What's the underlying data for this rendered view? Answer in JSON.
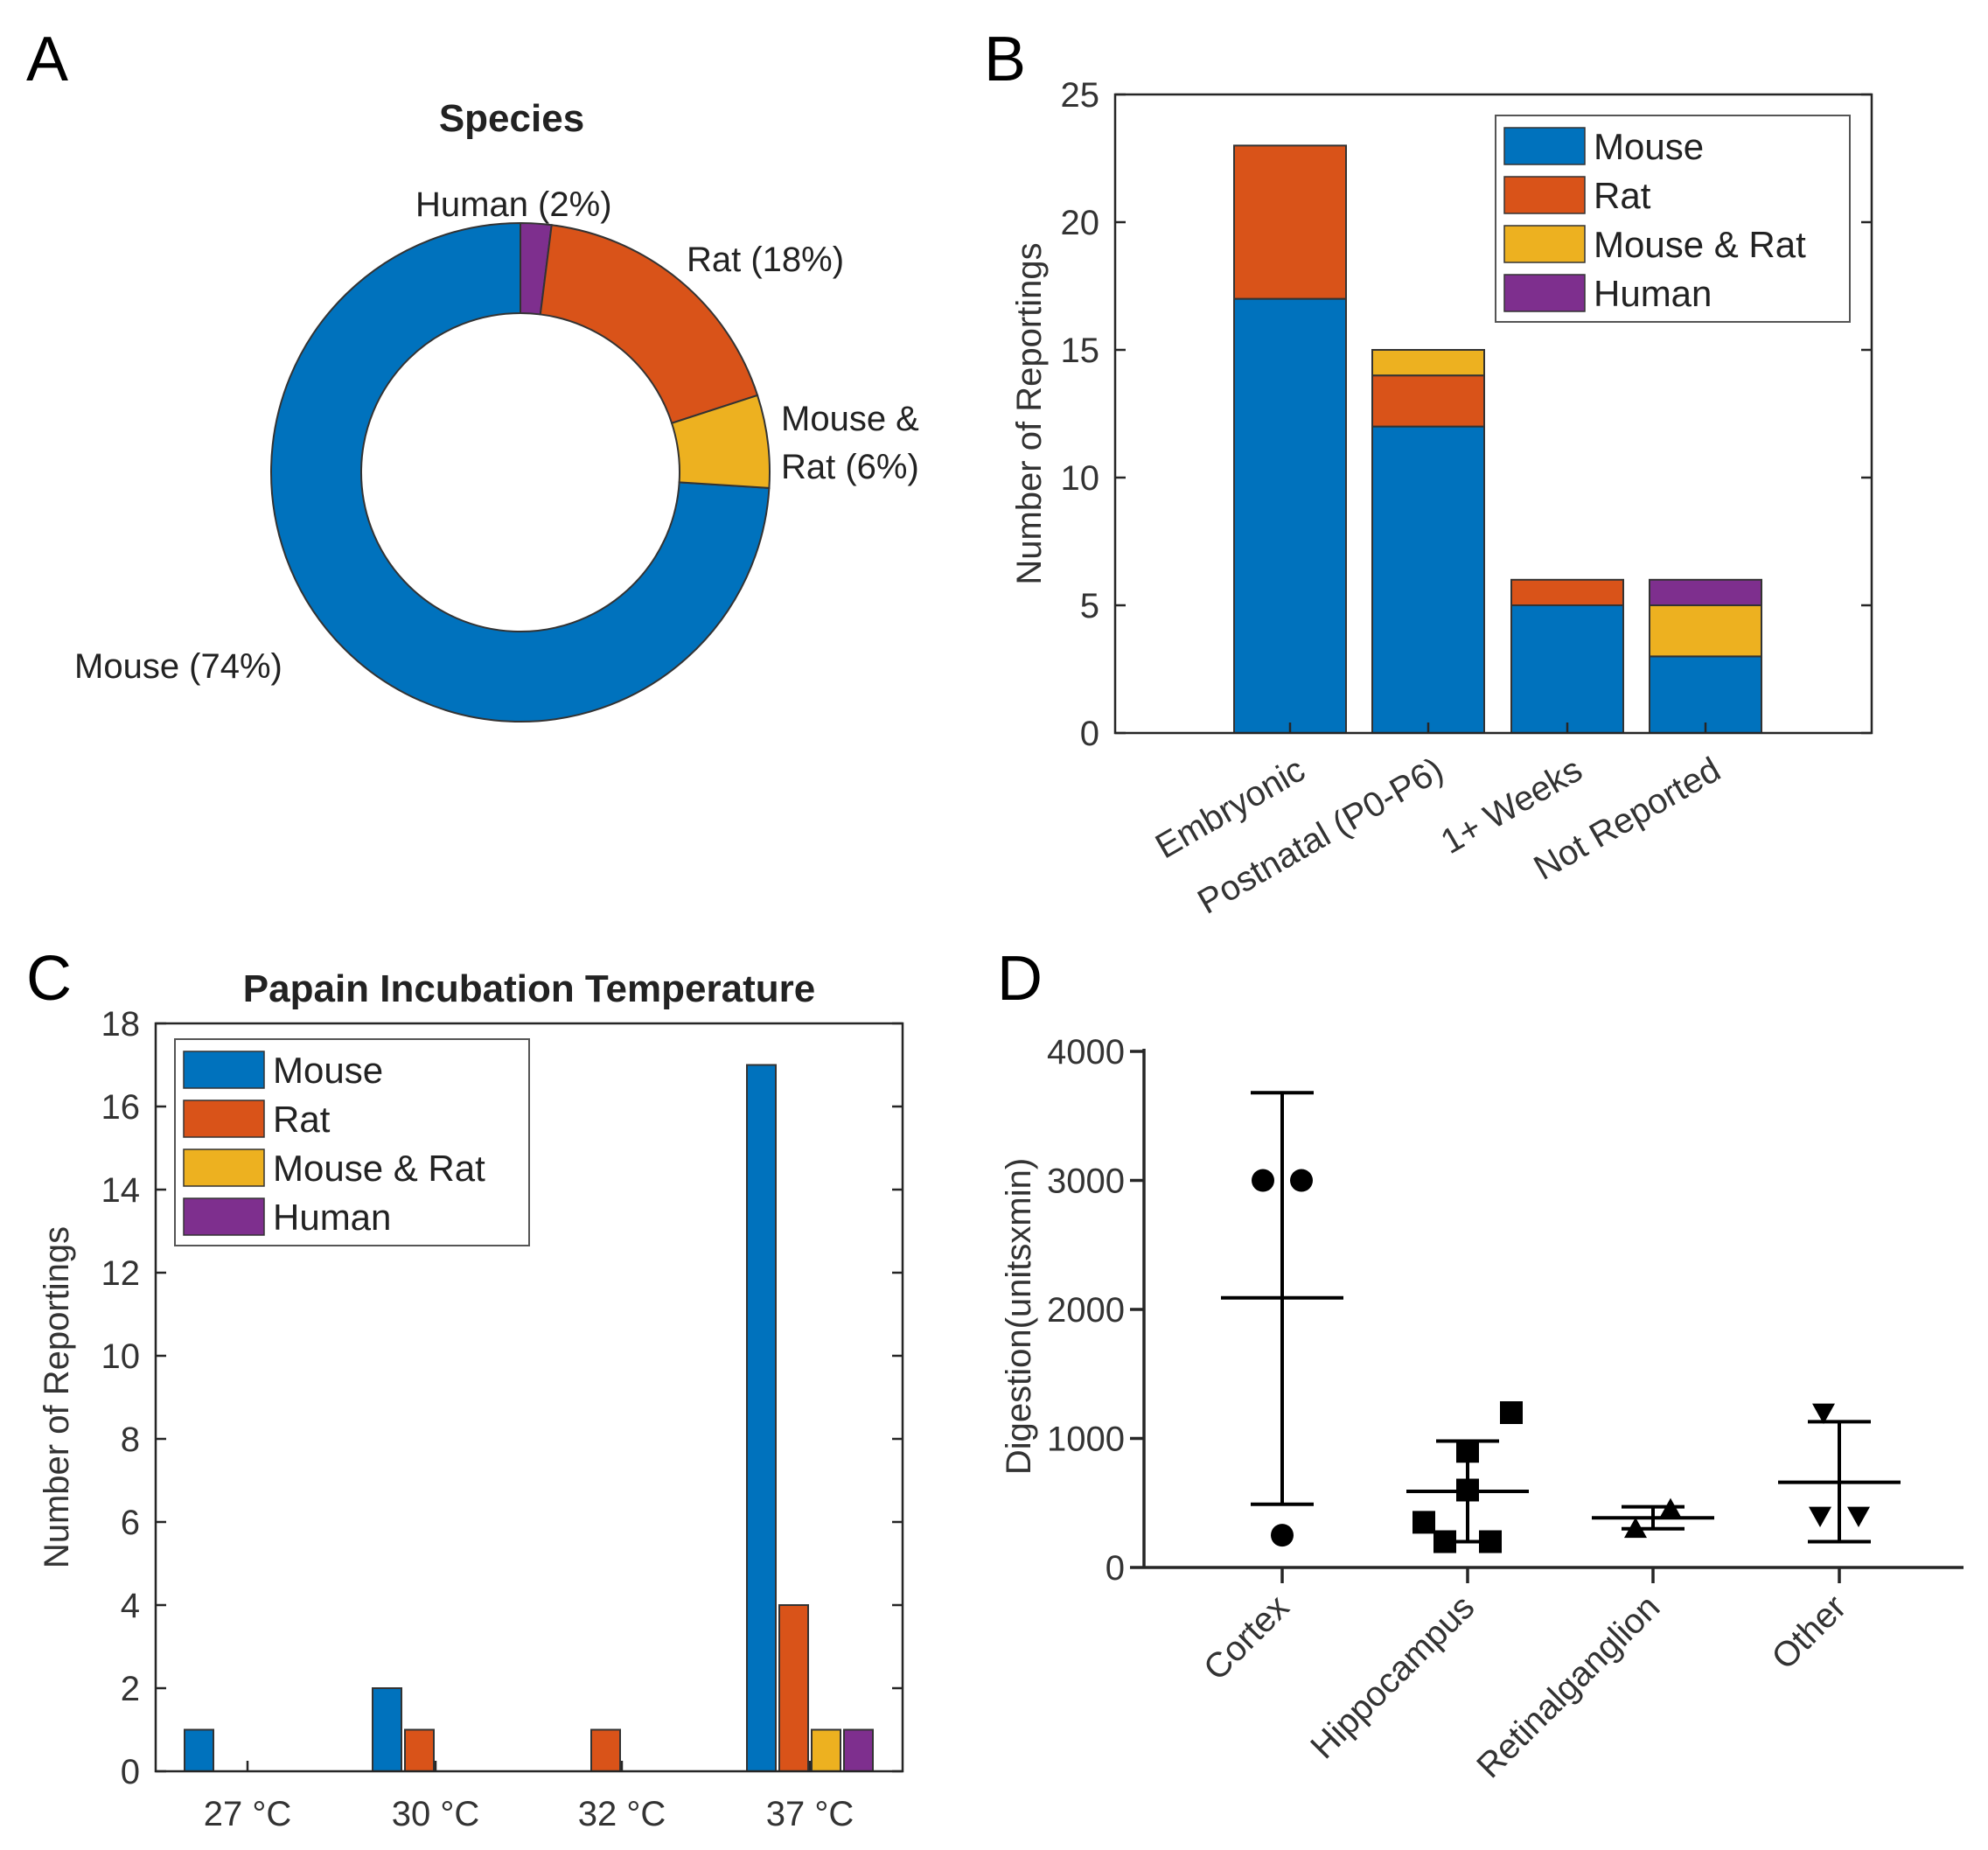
{
  "colors": {
    "Mouse": "#0072BD",
    "Rat": "#D95319",
    "Mouse & Rat": "#EDB120",
    "Human": "#7E2F8E",
    "axis": "#262626"
  },
  "chart_data": [
    {
      "panel": "A",
      "type": "pie",
      "title": "Species",
      "slices": [
        {
          "name": "Mouse",
          "value": 74,
          "label_lines": [
            "Mouse (74%)"
          ]
        },
        {
          "name": "Human",
          "value": 2,
          "label_lines": [
            "Human (2%)"
          ]
        },
        {
          "name": "Rat",
          "value": 18,
          "label_lines": [
            "Rat (18%)"
          ]
        },
        {
          "name": "Mouse & Rat",
          "value": 6,
          "label_lines": [
            "Mouse &",
            "Rat (6%)"
          ]
        }
      ]
    },
    {
      "panel": "B",
      "type": "bar",
      "stacked": true,
      "title": "",
      "xlabel": "",
      "ylabel": "Number of Reportings",
      "ylim": [
        0,
        25
      ],
      "yticks": [
        0,
        5,
        10,
        15,
        20,
        25
      ],
      "categories": [
        "Embryonic",
        "Postnatal (P0-P6)",
        "1+ Weeks",
        "Not Reported"
      ],
      "series": [
        {
          "name": "Mouse",
          "values": [
            17,
            12,
            5,
            3
          ]
        },
        {
          "name": "Rat",
          "values": [
            6,
            2,
            1,
            0
          ]
        },
        {
          "name": "Mouse & Rat",
          "values": [
            0,
            1,
            0,
            2
          ]
        },
        {
          "name": "Human",
          "values": [
            0,
            0,
            0,
            1
          ]
        }
      ],
      "legend": "top-right"
    },
    {
      "panel": "C",
      "type": "bar",
      "stacked": false,
      "title": "Papain Incubation Temperature",
      "xlabel": "",
      "ylabel": "Number of Reportings",
      "ylim": [
        0,
        18
      ],
      "yticks": [
        0,
        2,
        4,
        6,
        8,
        10,
        12,
        14,
        16,
        18
      ],
      "categories": [
        "27 °C",
        "30 °C",
        "32 °C",
        "37 °C"
      ],
      "series": [
        {
          "name": "Mouse",
          "values": [
            1,
            2,
            0,
            17
          ]
        },
        {
          "name": "Rat",
          "values": [
            0,
            1,
            1,
            4
          ]
        },
        {
          "name": "Mouse & Rat",
          "values": [
            0,
            0,
            0,
            1
          ]
        },
        {
          "name": "Human",
          "values": [
            0,
            0,
            0,
            1
          ]
        }
      ],
      "legend": "top-left"
    },
    {
      "panel": "D",
      "type": "scatter",
      "title": "",
      "xlabel": "",
      "ylabel": "Digestion(unitsxmin)",
      "ylim": [
        0,
        4000
      ],
      "yticks": [
        0,
        1000,
        2000,
        3000,
        4000
      ],
      "categories": [
        "Cortex",
        "Hippocampus",
        "Retinalganglion",
        "Other"
      ],
      "groups": [
        {
          "name": "Cortex",
          "marker": "circle",
          "points": [
            3000,
            3000,
            250
          ],
          "mean": 2090,
          "sd_low": 490,
          "sd_high": 3680
        },
        {
          "name": "Hippocampus",
          "marker": "square",
          "points": [
            1200,
            900,
            600,
            350,
            200,
            200
          ],
          "mean": 590,
          "sd_low": 200,
          "sd_high": 980
        },
        {
          "name": "Retinalganglion",
          "marker": "triangle-up",
          "points": [
            300,
            450
          ],
          "mean": 385,
          "sd_low": 300,
          "sd_high": 470
        },
        {
          "name": "Other",
          "marker": "triangle-down",
          "points": [
            1200,
            400,
            400
          ],
          "mean": 660,
          "sd_low": 200,
          "sd_high": 1130
        }
      ]
    }
  ]
}
